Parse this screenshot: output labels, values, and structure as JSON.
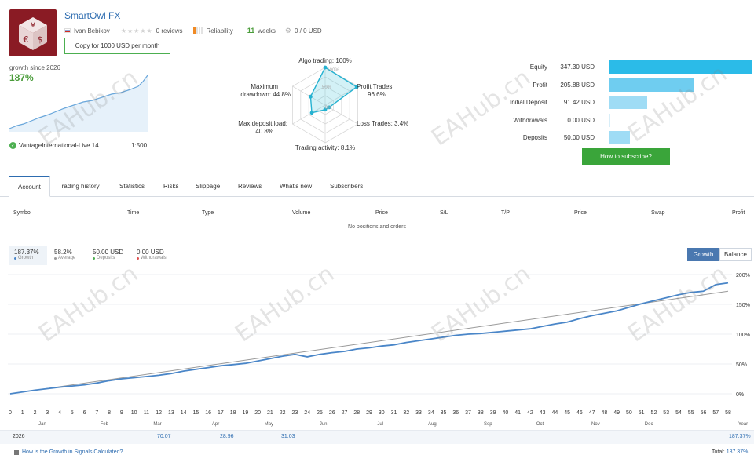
{
  "header": {
    "title": "SmartOwl FX",
    "author": "Ivan Bebikov",
    "reviews": "0 reviews",
    "reliability_label": "Reliability",
    "weeks_value": "11",
    "weeks_label": "weeks",
    "subscribers": "0 / 0 USD",
    "copy_button": "Copy for 1000 USD per month"
  },
  "growth_summary": {
    "since_label": "growth since 2026",
    "value": "187%",
    "account": "VantageInternational-Live 14",
    "leverage": "1:500"
  },
  "radar": {
    "labels": {
      "algo": "Algo trading: 100%",
      "profit_trades": "Profit Trades:",
      "profit_trades_val": "96.6%",
      "loss_trades": "Loss Trades: 3.4%",
      "activity": "Trading activity: 8.1%",
      "deposit_load": "Max deposit load:",
      "deposit_load_val": "40.8%",
      "drawdown": "Maximum",
      "drawdown2": "drawdown: 44.8%",
      "inner_100": "100%",
      "inner_50": "50%",
      "inner_0": "0%"
    },
    "values": {
      "algo": 1.0,
      "profit_trades": 0.966,
      "loss_trades": 0.034,
      "activity": 0.081,
      "deposit_load": 0.408,
      "drawdown": 0.448
    }
  },
  "balance_bars": [
    {
      "label": "Equity",
      "value": "347.30 USD",
      "amount": 347.3,
      "color": "#2bbbe8"
    },
    {
      "label": "Profit",
      "value": "205.88 USD",
      "amount": 205.88,
      "color": "#6fcdf0"
    },
    {
      "label": "Initial Deposit",
      "value": "91.42 USD",
      "amount": 91.42,
      "color": "#9fdcf5"
    },
    {
      "label": "Withdrawals",
      "value": "0.00 USD",
      "amount": 0,
      "color": "#9fdcf5"
    },
    {
      "label": "Deposits",
      "value": "50.00 USD",
      "amount": 50.0,
      "color": "#9fdcf5"
    }
  ],
  "subscribe_button": "How to subscribe?",
  "tabs": [
    "Account",
    "Trading history",
    "Statistics",
    "Risks",
    "Slippage",
    "Reviews",
    "What's new",
    "Subscribers"
  ],
  "positions_table": {
    "headers": [
      "Symbol",
      "Time",
      "Type",
      "Volume",
      "Price",
      "S/L",
      "T/P",
      "Price",
      "Swap",
      "Profit"
    ],
    "empty_text": "No positions and orders"
  },
  "growth_stats": [
    {
      "value": "187.37%",
      "label": "Growth",
      "color": "#4a86c8"
    },
    {
      "value": "58.2%",
      "label": "Average",
      "color": "#999999"
    },
    {
      "value": "50.00 USD",
      "label": "Deposits",
      "color": "#4caf50"
    },
    {
      "value": "0.00 USD",
      "label": "Withdrawals",
      "color": "#e05050"
    }
  ],
  "chart_buttons": {
    "growth": "Growth",
    "balance": "Balance"
  },
  "chart_data": {
    "type": "line",
    "x_ticks": [
      "0",
      "1",
      "2",
      "3",
      "4",
      "5",
      "6",
      "7",
      "8",
      "9",
      "10",
      "11",
      "12",
      "13",
      "14",
      "15",
      "16",
      "17",
      "18",
      "19",
      "20",
      "21",
      "22",
      "23",
      "24",
      "25",
      "26",
      "27",
      "28",
      "29",
      "30",
      "31",
      "32",
      "33",
      "34",
      "35",
      "36",
      "37",
      "38",
      "39",
      "40",
      "41",
      "42",
      "43",
      "44",
      "45",
      "46",
      "47",
      "48",
      "49",
      "50",
      "51",
      "52",
      "53",
      "54",
      "55",
      "56",
      "57",
      "58"
    ],
    "xlabel": "Year",
    "month_labels": [
      "Jan",
      "Feb",
      "Mar",
      "Apr",
      "May",
      "Jun",
      "Jul",
      "Aug",
      "Sep",
      "Oct",
      "Nov",
      "Dec"
    ],
    "y_ticks": [
      "200%",
      "150%",
      "100%",
      "50%",
      "0%"
    ],
    "ylim": [
      0,
      200
    ],
    "xlim": [
      0,
      58
    ],
    "series": [
      {
        "color": "#4a86c8",
        "x": [
          0,
          2,
          4,
          6,
          7,
          8,
          9,
          10,
          11,
          12,
          13,
          14,
          15,
          16,
          17,
          18,
          19,
          20,
          21,
          22,
          23,
          24,
          25,
          26,
          27,
          28,
          29,
          30,
          31,
          32,
          33,
          34,
          35,
          36,
          37,
          38,
          39,
          40,
          41,
          42,
          43,
          44,
          45,
          46,
          47,
          48,
          49,
          50,
          51,
          52,
          53,
          54,
          55,
          56,
          57,
          58
        ],
        "y": [
          0,
          6,
          11,
          15,
          18,
          22,
          25,
          27,
          29,
          31,
          34,
          38,
          41,
          44,
          47,
          49,
          51,
          55,
          59,
          63,
          66,
          62,
          66,
          69,
          71,
          75,
          77,
          80,
          82,
          86,
          89,
          92,
          95,
          98,
          100,
          101,
          103,
          105,
          107,
          109,
          113,
          117,
          120,
          126,
          131,
          135,
          139,
          145,
          151,
          156,
          161,
          166,
          170,
          172,
          183,
          186
        ]
      },
      {
        "color": "#999999",
        "x": [
          0,
          58
        ],
        "y": [
          0,
          172
        ]
      }
    ]
  },
  "yearly_row": {
    "year": "2026",
    "values": [
      "70.07",
      "28.96",
      "31.03"
    ],
    "total": "187.37%"
  },
  "footer": {
    "help_link": "How is the Growth in Signals Calculated?",
    "total_label": "Total:",
    "total_value": "187.37%"
  }
}
